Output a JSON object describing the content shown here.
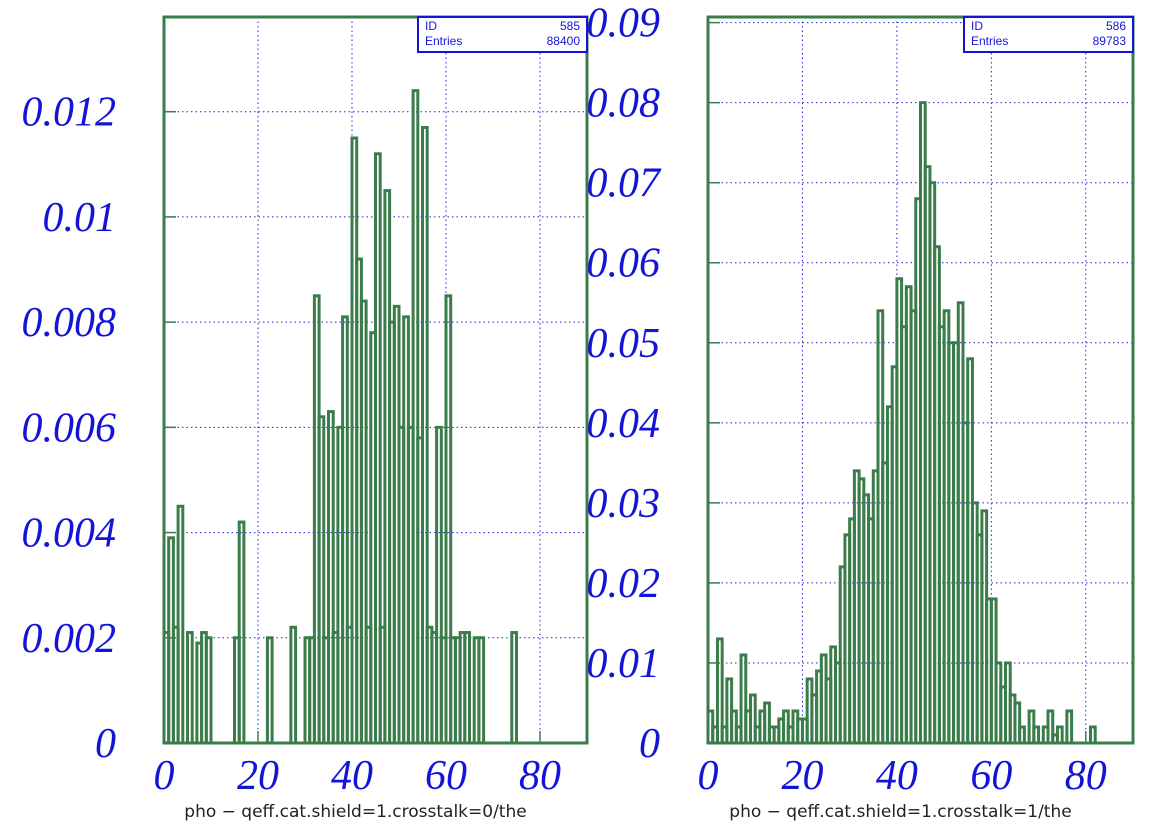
{
  "chart_data": [
    {
      "type": "histogram",
      "x_label": "pho − qeff.cat.shield=1.crosstalk=0/the",
      "stats": [
        {
          "label": "ID",
          "value": 585
        },
        {
          "label": "Entries",
          "value": 88400
        }
      ],
      "color": "#3a7d4a",
      "bins": [
        0,
        1,
        2,
        3,
        4,
        5,
        6,
        7,
        8,
        9,
        10,
        11,
        12,
        13,
        14,
        15,
        16,
        17,
        18,
        19,
        20,
        21,
        22,
        23,
        24,
        25,
        26,
        27,
        28,
        29,
        30,
        31,
        32,
        33,
        34,
        35,
        36,
        37,
        38,
        39,
        40,
        41,
        42,
        43,
        44,
        45,
        46,
        47,
        48,
        49,
        50,
        51,
        52,
        53,
        54,
        55,
        56,
        57,
        58,
        59,
        60,
        61,
        62,
        63,
        64,
        65,
        66,
        67,
        68,
        69,
        70,
        71,
        72,
        73,
        74,
        75,
        76,
        77,
        78,
        79,
        80,
        81,
        82,
        83,
        84,
        85,
        86,
        87,
        88,
        89,
        90
      ],
      "values": [
        0.0021,
        0.0039,
        0.0022,
        0.0045,
        0,
        0.0021,
        0,
        0.0019,
        0.0021,
        0.002,
        0,
        0,
        0,
        0,
        0,
        0.002,
        0.0042,
        0,
        0,
        0,
        0,
        0,
        0.002,
        0,
        0,
        0,
        0,
        0.0022,
        0,
        0,
        0.002,
        0.002,
        0.0085,
        0.0062,
        0.002,
        0.0063,
        0.0021,
        0.006,
        0.0081,
        0.0022,
        0.0115,
        0.0092,
        0.0084,
        0.0022,
        0.0078,
        0.0112,
        0.0022,
        0.0105,
        0.008,
        0.0083,
        0.006,
        0.0081,
        0.006,
        0.0124,
        0.0058,
        0.0117,
        0.0022,
        0.0021,
        0.006,
        0.002,
        0.0085,
        0.002,
        0.002,
        0.0021,
        0.0021,
        0,
        0.002,
        0.002,
        0,
        0,
        0,
        0,
        0,
        0,
        0.0021,
        0,
        0,
        0,
        0,
        0,
        0,
        0,
        0,
        0,
        0,
        0,
        0,
        0,
        0,
        0
      ],
      "xlim": [
        0,
        90
      ],
      "xticks": [
        0,
        20,
        40,
        60,
        80
      ],
      "ylim": [
        0,
        0.0138
      ],
      "yticks": [
        0,
        0.002,
        0.004,
        0.006,
        0.008,
        0.01,
        0.012
      ],
      "grid": true
    },
    {
      "type": "histogram",
      "x_label": "pho − qeff.cat.shield=1.crosstalk=1/the",
      "stats": [
        {
          "label": "ID",
          "value": 586
        },
        {
          "label": "Entries",
          "value": 89783
        }
      ],
      "color": "#3a7d4a",
      "bins": [
        0,
        1,
        2,
        3,
        4,
        5,
        6,
        7,
        8,
        9,
        10,
        11,
        12,
        13,
        14,
        15,
        16,
        17,
        18,
        19,
        20,
        21,
        22,
        23,
        24,
        25,
        26,
        27,
        28,
        29,
        30,
        31,
        32,
        33,
        34,
        35,
        36,
        37,
        38,
        39,
        40,
        41,
        42,
        43,
        44,
        45,
        46,
        47,
        48,
        49,
        50,
        51,
        52,
        53,
        54,
        55,
        56,
        57,
        58,
        59,
        60,
        61,
        62,
        63,
        64,
        65,
        66,
        67,
        68,
        69,
        70,
        71,
        72,
        73,
        74,
        75,
        76,
        77,
        78,
        79,
        80,
        81,
        82,
        83,
        84,
        85,
        86,
        87,
        88,
        89,
        90
      ],
      "values": [
        0.004,
        0.002,
        0.013,
        0.002,
        0.008,
        0.004,
        0.002,
        0.011,
        0.004,
        0.006,
        0.002,
        0.004,
        0.005,
        0.002,
        0.002,
        0.003,
        0.004,
        0.002,
        0.004,
        0.003,
        0.003,
        0.008,
        0.006,
        0.009,
        0.011,
        0.008,
        0.012,
        0.01,
        0.022,
        0.026,
        0.028,
        0.034,
        0.033,
        0.031,
        0.028,
        0.034,
        0.054,
        0.035,
        0.042,
        0.047,
        0.058,
        0.052,
        0.057,
        0.054,
        0.068,
        0.08,
        0.072,
        0.07,
        0.062,
        0.052,
        0.054,
        0.05,
        0.05,
        0.055,
        0.04,
        0.048,
        0.03,
        0.026,
        0.029,
        0.018,
        0.018,
        0.01,
        0.007,
        0.01,
        0.006,
        0.005,
        0.002,
        0,
        0.004,
        0.002,
        0,
        0.002,
        0.004,
        0.001,
        0.002,
        0,
        0.004,
        0,
        0,
        0,
        0,
        0.002,
        0,
        0,
        0,
        0,
        0,
        0,
        0,
        0
      ],
      "xlim": [
        0,
        90
      ],
      "xticks": [
        0,
        20,
        40,
        60,
        80
      ],
      "ylim": [
        0,
        0.0907
      ],
      "yticks": [
        0,
        0.01,
        0.02,
        0.03,
        0.04,
        0.05,
        0.06,
        0.07,
        0.08,
        0.09
      ],
      "grid": true
    }
  ]
}
